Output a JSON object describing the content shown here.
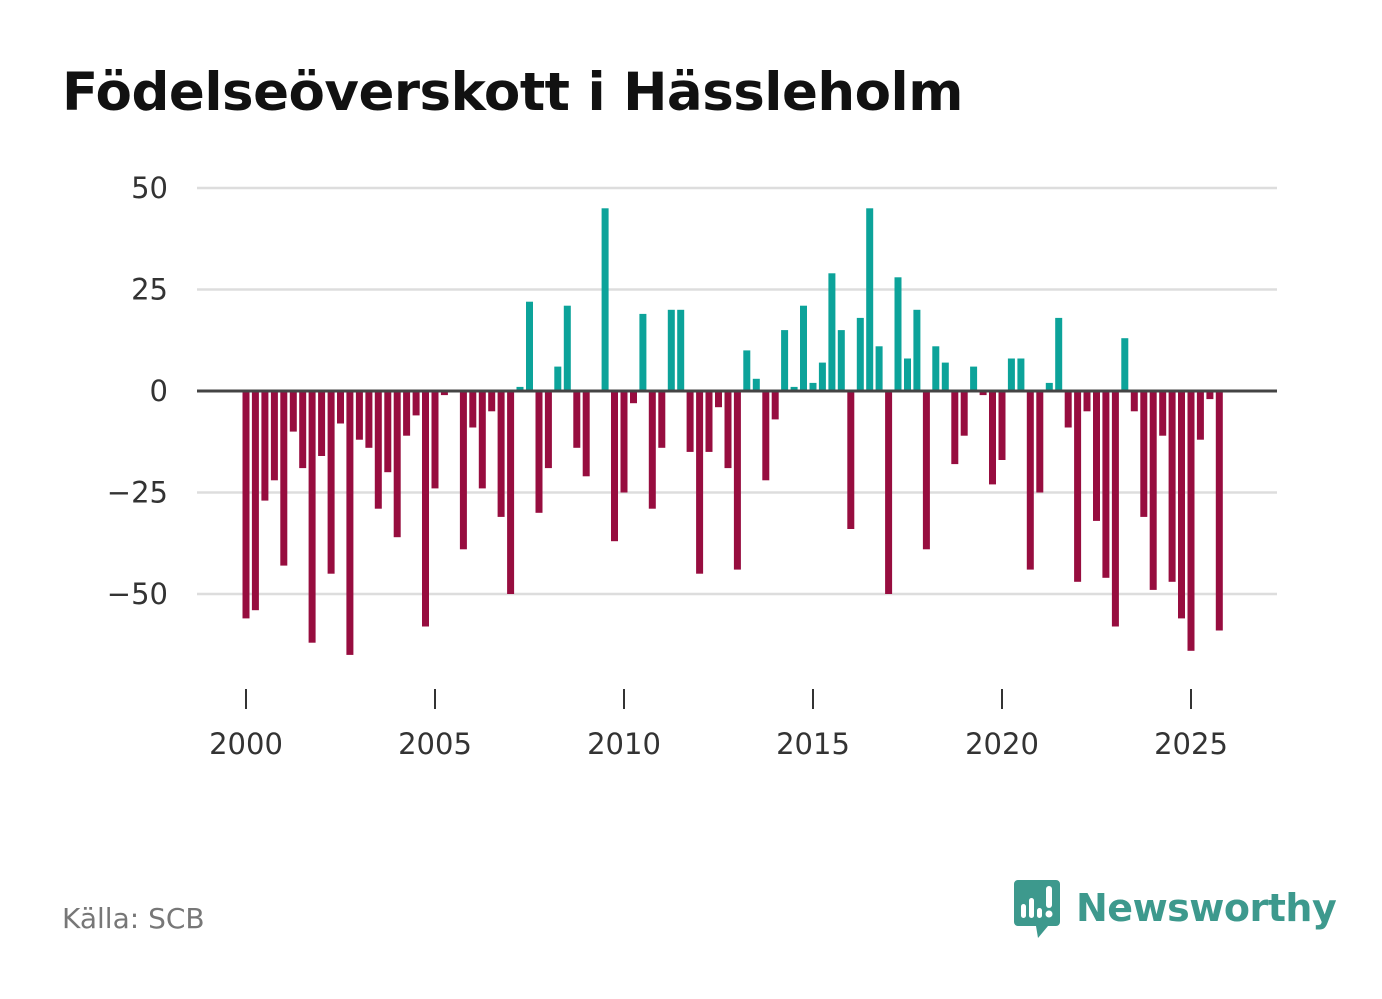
{
  "title": "Födelseöverskott i Hässleholm",
  "source": "Källa: SCB",
  "brand": {
    "name": "Newsworthy",
    "icon": "newsworthy-logo-icon"
  },
  "colors": {
    "positive": "#0ca39a",
    "negative": "#970d3f",
    "grid": "#dddddd",
    "zero_line": "#444444",
    "brand": "#3d998d"
  },
  "chart_data": {
    "type": "bar",
    "title": "Födelseöverskott i Hässleholm",
    "xlabel": "",
    "ylabel": "",
    "frequency": "quarterly",
    "start": 2000,
    "x": [
      2000.0,
      2000.25,
      2000.5,
      2000.75,
      2001.0,
      2001.25,
      2001.5,
      2001.75,
      2002.0,
      2002.25,
      2002.5,
      2002.75,
      2003.0,
      2003.25,
      2003.5,
      2003.75,
      2004.0,
      2004.25,
      2004.5,
      2004.75,
      2005.0,
      2005.25,
      2005.5,
      2005.75,
      2006.0,
      2006.25,
      2006.5,
      2006.75,
      2007.0,
      2007.25,
      2007.5,
      2007.75,
      2008.0,
      2008.25,
      2008.5,
      2008.75,
      2009.0,
      2009.25,
      2009.5,
      2009.75,
      2010.0,
      2010.25,
      2010.5,
      2010.75,
      2011.0,
      2011.25,
      2011.5,
      2011.75,
      2012.0,
      2012.25,
      2012.5,
      2012.75,
      2013.0,
      2013.25,
      2013.5,
      2013.75,
      2014.0,
      2014.25,
      2014.5,
      2014.75,
      2015.0,
      2015.25,
      2015.5,
      2015.75,
      2016.0,
      2016.25,
      2016.5,
      2016.75,
      2017.0,
      2017.25,
      2017.5,
      2017.75,
      2018.0,
      2018.25,
      2018.5,
      2018.75,
      2019.0,
      2019.25,
      2019.5,
      2019.75,
      2020.0,
      2020.25,
      2020.5,
      2020.75,
      2021.0,
      2021.25,
      2021.5,
      2021.75,
      2022.0,
      2022.25,
      2022.5,
      2022.75,
      2023.0,
      2023.25,
      2023.5,
      2023.75,
      2024.0,
      2024.25,
      2024.5,
      2024.75,
      2025.0,
      2025.25,
      2025.5,
      2025.75
    ],
    "values": [
      -56,
      -54,
      -27,
      -22,
      -43,
      -10,
      -19,
      -62,
      -16,
      -45,
      -8,
      -65,
      -12,
      -14,
      -29,
      -20,
      -36,
      -11,
      -6,
      -58,
      -24,
      -1,
      0,
      -39,
      -9,
      -24,
      -5,
      -31,
      -50,
      1,
      22,
      -30,
      -19,
      6,
      21,
      -14,
      -21,
      0,
      45,
      -37,
      -25,
      -3,
      19,
      -29,
      -14,
      20,
      20,
      -15,
      -45,
      -15,
      -4,
      -19,
      -44,
      10,
      3,
      -22,
      -7,
      15,
      1,
      21,
      2,
      7,
      29,
      15,
      -34,
      18,
      45,
      11,
      -50,
      28,
      8,
      20,
      -39,
      11,
      7,
      -18,
      -11,
      6,
      -1,
      -23,
      -17,
      8,
      8,
      -44,
      -25,
      2,
      18,
      -9,
      -47,
      -5,
      -32,
      -46,
      -58,
      13,
      -5,
      -31,
      -49,
      -11,
      -47,
      -56,
      -64,
      -12,
      -2,
      -59
    ],
    "ylim": [
      -75,
      50
    ],
    "yticks": [
      50,
      25,
      0,
      -25,
      -50
    ],
    "ytick_labels": [
      "50",
      "25",
      "0",
      "−25",
      "−50"
    ],
    "xticks": [
      2000,
      2005,
      2010,
      2015,
      2020,
      2025
    ],
    "xtick_labels": [
      "2000",
      "2005",
      "2010",
      "2015",
      "2020",
      "2025"
    ],
    "grid": true,
    "legend": "none"
  }
}
